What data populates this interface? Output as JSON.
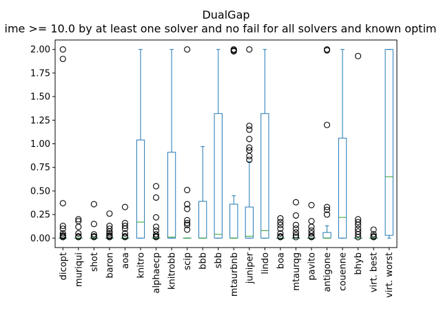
{
  "chart_data": {
    "type": "box",
    "title": "DualGap",
    "subtitle": "ime >= 10.0 by at least one solver and no fail for all solvers and known optim",
    "xlabel": "",
    "ylabel": "",
    "ylim": [
      -0.1,
      2.1
    ],
    "yticks": [
      0.0,
      0.25,
      0.5,
      0.75,
      1.0,
      1.25,
      1.5,
      1.75,
      2.0
    ],
    "ytick_labels": [
      "0.00",
      "0.25",
      "0.50",
      "0.75",
      "1.00",
      "1.25",
      "1.50",
      "1.75",
      "2.00"
    ],
    "grid": false,
    "legend": "none",
    "colors": {
      "box": "#1f77b4",
      "median": "#2ca02c",
      "flier": "#000000"
    },
    "categories": [
      "dicopt",
      "muriqui",
      "shot",
      "baron",
      "aoa",
      "knitro",
      "alphaecp",
      "knitrobb",
      "scip",
      "bbb",
      "sbb",
      "mtaurbnb",
      "juniper",
      "lindo",
      "boa",
      "mtaurqg",
      "pavito",
      "antigone",
      "couenne",
      "bhyb",
      "virt. best",
      "virt. worst"
    ],
    "boxes": [
      {
        "q1": 0.0,
        "median": 0.0,
        "q3": 0.0,
        "whislo": 0.0,
        "whishi": 0.0,
        "fliers": [
          2.0,
          1.9,
          0.37,
          0.13,
          0.1,
          0.05,
          0.03,
          0.02,
          0.01
        ]
      },
      {
        "q1": 0.0,
        "median": 0.0,
        "q3": 0.0,
        "whislo": 0.0,
        "whishi": 0.0,
        "fliers": [
          0.2,
          0.18,
          0.12,
          0.05,
          0.02,
          0.01
        ]
      },
      {
        "q1": 0.0,
        "median": 0.0,
        "q3": 0.0,
        "whislo": 0.0,
        "whishi": 0.0,
        "fliers": [
          0.36,
          0.15,
          0.04,
          0.02,
          0.01
        ]
      },
      {
        "q1": 0.0,
        "median": 0.0,
        "q3": 0.0,
        "whislo": 0.0,
        "whishi": 0.0,
        "fliers": [
          0.26,
          0.13,
          0.1,
          0.07,
          0.05,
          0.03,
          0.02,
          0.01
        ]
      },
      {
        "q1": 0.0,
        "median": 0.0,
        "q3": 0.0,
        "whislo": 0.0,
        "whishi": 0.0,
        "fliers": [
          0.33,
          0.16,
          0.13,
          0.1,
          0.05,
          0.02,
          0.01
        ]
      },
      {
        "q1": 0.0,
        "median": 0.17,
        "q3": 1.04,
        "whislo": 0.0,
        "whishi": 2.0,
        "fliers": []
      },
      {
        "q1": 0.0,
        "median": 0.0,
        "q3": 0.0,
        "whislo": 0.0,
        "whishi": 0.0,
        "fliers": [
          0.55,
          0.43,
          0.22,
          0.12,
          0.08,
          0.04,
          0.02,
          0.01
        ]
      },
      {
        "q1": 0.0,
        "median": 0.01,
        "q3": 0.91,
        "whislo": 0.0,
        "whishi": 2.0,
        "fliers": []
      },
      {
        "q1": 0.0,
        "median": 0.0,
        "q3": 0.0,
        "whislo": 0.0,
        "whishi": 0.0,
        "fliers": [
          2.0,
          0.51,
          0.36,
          0.31,
          0.19,
          0.16,
          0.14,
          0.09
        ]
      },
      {
        "q1": 0.0,
        "median": 0.0,
        "q3": 0.39,
        "whislo": 0.0,
        "whishi": 0.97,
        "fliers": []
      },
      {
        "q1": 0.0,
        "median": 0.04,
        "q3": 1.32,
        "whislo": 0.0,
        "whishi": 2.0,
        "fliers": []
      },
      {
        "q1": 0.0,
        "median": 0.0,
        "q3": 0.36,
        "whislo": 0.0,
        "whishi": 0.45,
        "fliers": [
          2.0,
          1.99,
          1.98
        ]
      },
      {
        "q1": 0.0,
        "median": 0.02,
        "q3": 0.33,
        "whislo": 0.0,
        "whishi": 0.81,
        "fliers": [
          2.0,
          1.19,
          1.15,
          1.05,
          0.96,
          0.93,
          0.87,
          0.83
        ]
      },
      {
        "q1": 0.0,
        "median": 0.08,
        "q3": 1.32,
        "whislo": 0.0,
        "whishi": 2.0,
        "fliers": []
      },
      {
        "q1": 0.0,
        "median": 0.0,
        "q3": 0.0,
        "whislo": 0.0,
        "whishi": 0.0,
        "fliers": [
          0.21,
          0.17,
          0.14,
          0.1,
          0.05,
          0.02,
          0.01
        ]
      },
      {
        "q1": 0.0,
        "median": 0.0,
        "q3": 0.0,
        "whislo": 0.0,
        "whishi": 0.0,
        "fliers": [
          0.38,
          0.24,
          0.14,
          0.1,
          0.06,
          0.03,
          0.01
        ]
      },
      {
        "q1": 0.0,
        "median": 0.0,
        "q3": 0.0,
        "whislo": 0.0,
        "whishi": 0.0,
        "fliers": [
          0.35,
          0.18,
          0.12,
          0.08,
          0.05,
          0.02,
          0.01
        ]
      },
      {
        "q1": 0.0,
        "median": 0.0,
        "q3": 0.06,
        "whislo": 0.0,
        "whishi": 0.13,
        "fliers": [
          2.0,
          1.99,
          1.2,
          0.33,
          0.3,
          0.25
        ]
      },
      {
        "q1": 0.0,
        "median": 0.22,
        "q3": 1.06,
        "whislo": 0.0,
        "whishi": 2.0,
        "fliers": []
      },
      {
        "q1": 0.0,
        "median": 0.0,
        "q3": 0.0,
        "whislo": 0.0,
        "whishi": 0.0,
        "fliers": [
          1.93,
          0.2,
          0.17,
          0.14,
          0.1,
          0.07,
          0.04,
          0.01
        ]
      },
      {
        "q1": 0.0,
        "median": 0.0,
        "q3": 0.0,
        "whislo": 0.0,
        "whishi": 0.0,
        "fliers": [
          0.09,
          0.04,
          0.02,
          0.01
        ]
      },
      {
        "q1": 0.03,
        "median": 0.65,
        "q3": 2.0,
        "whislo": 0.0,
        "whishi": 2.0,
        "fliers": []
      }
    ]
  }
}
